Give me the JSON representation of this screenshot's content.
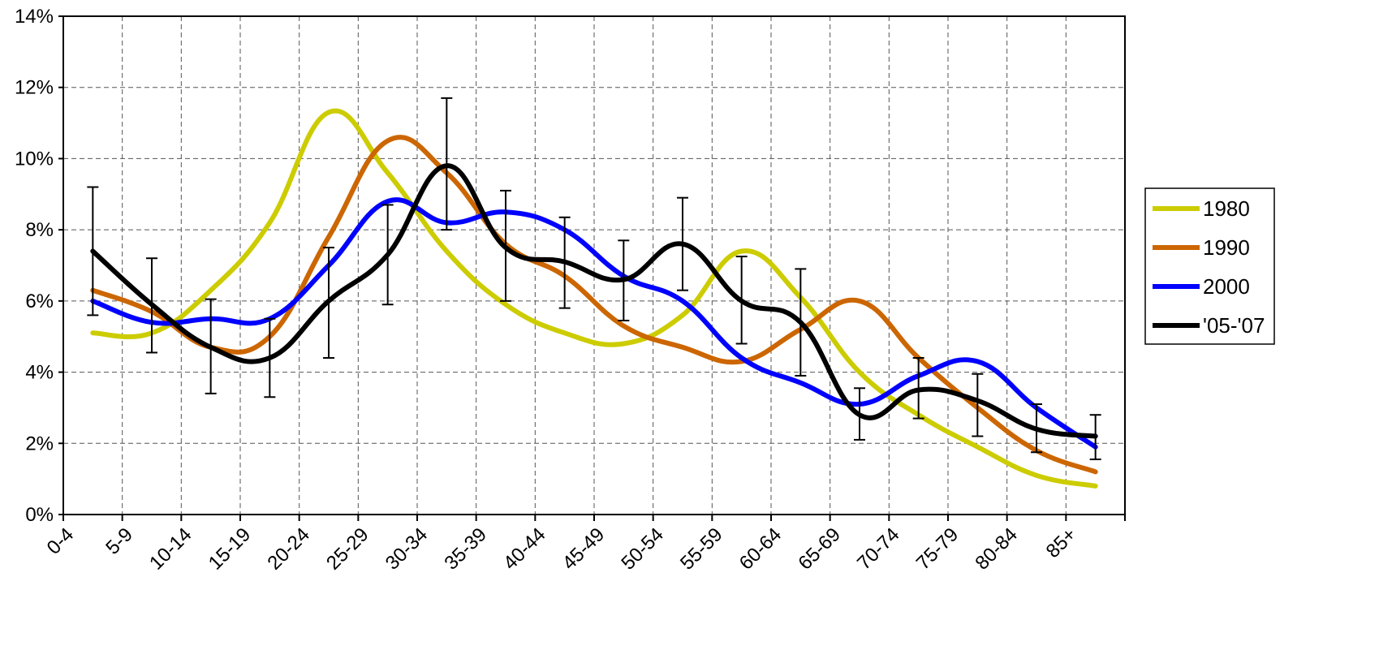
{
  "chart_data": {
    "type": "line",
    "categories": [
      "0-4",
      "5-9",
      "10-14",
      "15-19",
      "20-24",
      "25-29",
      "30-34",
      "35-39",
      "40-44",
      "45-49",
      "50-54",
      "55-59",
      "60-64",
      "65-69",
      "70-74",
      "75-79",
      "80-84",
      "85+"
    ],
    "y_ticks": [
      "0%",
      "2%",
      "4%",
      "6%",
      "8%",
      "10%",
      "12%",
      "14%"
    ],
    "ylim": [
      0,
      14
    ],
    "grid": true,
    "legend_position": "right",
    "series": [
      {
        "name": "1980",
        "color": "#cccc00",
        "values": [
          5.1,
          5.1,
          6.3,
          8.2,
          11.3,
          9.6,
          7.4,
          5.9,
          5.1,
          4.8,
          5.6,
          7.4,
          6.1,
          4.0,
          2.8,
          1.9,
          1.1,
          0.8
        ]
      },
      {
        "name": "1990",
        "color": "#cc6600",
        "values": [
          6.3,
          5.7,
          4.7,
          5.0,
          7.8,
          10.5,
          9.6,
          7.6,
          6.7,
          5.3,
          4.7,
          4.3,
          5.2,
          6.0,
          4.4,
          3.0,
          1.8,
          1.2
        ]
      },
      {
        "name": "2000",
        "color": "#0000ff",
        "values": [
          6.0,
          5.4,
          5.5,
          5.5,
          7.0,
          8.8,
          8.2,
          8.5,
          8.0,
          6.7,
          6.0,
          4.4,
          3.7,
          3.1,
          3.9,
          4.3,
          3.0,
          1.9
        ]
      },
      {
        "name": "'05-'07",
        "color": "#000000",
        "values": [
          7.4,
          5.9,
          4.7,
          4.4,
          6.0,
          7.3,
          9.8,
          7.5,
          7.1,
          6.6,
          7.6,
          6.0,
          5.4,
          2.8,
          3.5,
          3.2,
          2.4,
          2.2
        ]
      }
    ],
    "error_bars": {
      "series": "'05-'07",
      "low": [
        5.6,
        4.55,
        3.4,
        3.3,
        4.4,
        5.9,
        8.0,
        6.0,
        5.8,
        5.45,
        6.3,
        4.8,
        3.9,
        2.1,
        2.7,
        2.2,
        1.75,
        1.55
      ],
      "high": [
        9.2,
        7.2,
        6.05,
        5.5,
        7.5,
        8.7,
        11.7,
        9.1,
        8.35,
        7.7,
        8.9,
        7.25,
        6.9,
        3.55,
        4.4,
        3.95,
        3.1,
        2.8
      ]
    }
  }
}
